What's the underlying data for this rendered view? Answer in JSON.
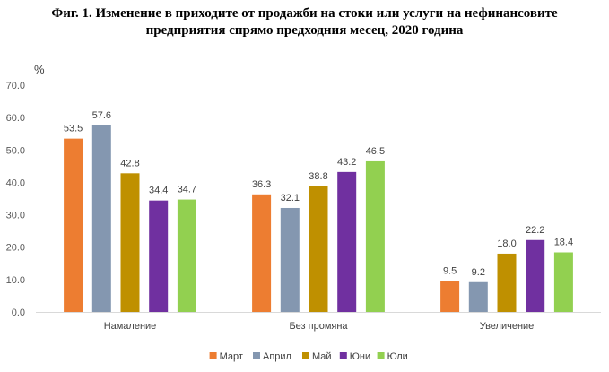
{
  "title_lines": [
    "Фиг. 1. Изменение в приходите от продажби на стоки или услуги на нефинансовите",
    "предприятия спрямо предходния месец, 2020 година"
  ],
  "chart_data": {
    "type": "bar",
    "title": "Фиг. 1. Изменение в приходите от продажби на стоки или услуги на нефинансовите предприятия спрямо предходния месец, 2020 година",
    "ylabel": "%",
    "xlabel": "",
    "ylim": [
      0,
      70
    ],
    "yticks": [
      "0.0",
      "10.0",
      "20.0",
      "30.0",
      "40.0",
      "50.0",
      "60.0",
      "70.0"
    ],
    "grid": false,
    "legend_position": "bottom",
    "categories": [
      "Намаление",
      "Без промяна",
      "Увеличение"
    ],
    "series": [
      {
        "name": "Март",
        "color": "#ED7D31",
        "values": [
          53.5,
          36.3,
          9.5
        ]
      },
      {
        "name": "Април",
        "color": "#8497B0",
        "values": [
          57.6,
          32.1,
          9.2
        ]
      },
      {
        "name": "Май",
        "color": "#BF9000",
        "values": [
          42.8,
          38.8,
          18.0
        ]
      },
      {
        "name": "Юни",
        "color": "#7030A0",
        "values": [
          34.4,
          43.2,
          22.2
        ]
      },
      {
        "name": "Юли",
        "color": "#92D050",
        "values": [
          34.7,
          46.5,
          18.4
        ]
      }
    ]
  }
}
